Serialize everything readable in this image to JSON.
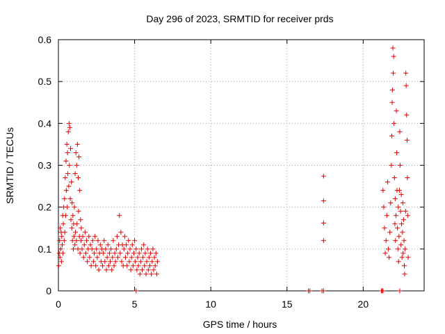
{
  "chart_data": {
    "type": "scatter",
    "title": "Day 296 of 2023, SRMTID for receiver prds",
    "xlabel": "GPS time / hours",
    "ylabel": "SRMTID / TECUs",
    "xlim": [
      0,
      24
    ],
    "ylim": [
      0,
      0.6
    ],
    "xticks": [
      "0",
      "5",
      "10",
      "15",
      "20"
    ],
    "yticks": [
      "0",
      "0.1",
      "0.2",
      "0.3",
      "0.4",
      "0.5",
      "0.6"
    ],
    "grid": true,
    "marker": "+",
    "color": "#e00000",
    "series": [
      {
        "name": "prds",
        "points": [
          [
            0.02,
            0.06
          ],
          [
            0.05,
            0.09
          ],
          [
            0.08,
            0.12
          ],
          [
            0.1,
            0.08
          ],
          [
            0.12,
            0.15
          ],
          [
            0.15,
            0.1
          ],
          [
            0.18,
            0.14
          ],
          [
            0.2,
            0.07
          ],
          [
            0.22,
            0.13
          ],
          [
            0.25,
            0.11
          ],
          [
            0.28,
            0.18
          ],
          [
            0.3,
            0.09
          ],
          [
            0.32,
            0.16
          ],
          [
            0.35,
            0.2
          ],
          [
            0.38,
            0.12
          ],
          [
            0.4,
            0.22
          ],
          [
            0.42,
            0.14
          ],
          [
            0.45,
            0.27
          ],
          [
            0.48,
            0.18
          ],
          [
            0.5,
            0.31
          ],
          [
            0.52,
            0.24
          ],
          [
            0.55,
            0.35
          ],
          [
            0.58,
            0.2
          ],
          [
            0.6,
            0.33
          ],
          [
            0.62,
            0.28
          ],
          [
            0.65,
            0.38
          ],
          [
            0.68,
            0.25
          ],
          [
            0.7,
            0.4
          ],
          [
            0.72,
            0.3
          ],
          [
            0.75,
            0.39
          ],
          [
            0.78,
            0.22
          ],
          [
            0.8,
            0.34
          ],
          [
            0.82,
            0.17
          ],
          [
            0.85,
            0.26
          ],
          [
            0.88,
            0.15
          ],
          [
            0.9,
            0.21
          ],
          [
            0.92,
            0.12
          ],
          [
            0.95,
            0.18
          ],
          [
            0.98,
            0.1
          ],
          [
            1.0,
            0.16
          ],
          [
            1.02,
            0.13
          ],
          [
            1.05,
            0.2
          ],
          [
            1.08,
            0.11
          ],
          [
            1.1,
            0.28
          ],
          [
            1.12,
            0.14
          ],
          [
            1.15,
            0.33
          ],
          [
            1.18,
            0.12
          ],
          [
            1.2,
            0.3
          ],
          [
            1.22,
            0.16
          ],
          [
            1.25,
            0.35
          ],
          [
            1.28,
            0.1
          ],
          [
            1.3,
            0.27
          ],
          [
            1.32,
            0.19
          ],
          [
            1.35,
            0.32
          ],
          [
            1.38,
            0.13
          ],
          [
            1.4,
            0.24
          ],
          [
            1.42,
            0.09
          ],
          [
            1.45,
            0.17
          ],
          [
            1.48,
            0.12
          ],
          [
            1.5,
            0.15
          ],
          [
            1.55,
            0.1
          ],
          [
            1.6,
            0.13
          ],
          [
            1.65,
            0.08
          ],
          [
            1.7,
            0.11
          ],
          [
            1.75,
            0.14
          ],
          [
            1.8,
            0.09
          ],
          [
            1.85,
            0.12
          ],
          [
            1.9,
            0.07
          ],
          [
            1.95,
            0.1
          ],
          [
            2.0,
            0.13
          ],
          [
            2.05,
            0.08
          ],
          [
            2.1,
            0.11
          ],
          [
            2.15,
            0.06
          ],
          [
            2.2,
            0.1
          ],
          [
            2.25,
            0.12
          ],
          [
            2.3,
            0.07
          ],
          [
            2.35,
            0.09
          ],
          [
            2.4,
            0.13
          ],
          [
            2.45,
            0.06
          ],
          [
            2.5,
            0.1
          ],
          [
            2.55,
            0.08
          ],
          [
            2.6,
            0.12
          ],
          [
            2.65,
            0.05
          ],
          [
            2.7,
            0.09
          ],
          [
            2.75,
            0.11
          ],
          [
            2.8,
            0.07
          ],
          [
            2.85,
            0.1
          ],
          [
            2.9,
            0.06
          ],
          [
            2.95,
            0.09
          ],
          [
            3.0,
            0.12
          ],
          [
            3.05,
            0.07
          ],
          [
            3.1,
            0.1
          ],
          [
            3.15,
            0.05
          ],
          [
            3.2,
            0.08
          ],
          [
            3.25,
            0.11
          ],
          [
            3.3,
            0.06
          ],
          [
            3.35,
            0.09
          ],
          [
            3.4,
            0.07
          ],
          [
            3.45,
            0.1
          ],
          [
            3.5,
            0.05
          ],
          [
            3.55,
            0.08
          ],
          [
            3.6,
            0.12
          ],
          [
            3.65,
            0.06
          ],
          [
            3.7,
            0.09
          ],
          [
            3.75,
            0.07
          ],
          [
            3.8,
            0.1
          ],
          [
            3.85,
            0.13
          ],
          [
            3.9,
            0.08
          ],
          [
            3.95,
            0.11
          ],
          [
            4.0,
            0.18
          ],
          [
            4.05,
            0.09
          ],
          [
            4.1,
            0.14
          ],
          [
            4.15,
            0.07
          ],
          [
            4.2,
            0.11
          ],
          [
            4.25,
            0.06
          ],
          [
            4.3,
            0.1
          ],
          [
            4.35,
            0.13
          ],
          [
            4.4,
            0.08
          ],
          [
            4.45,
            0.11
          ],
          [
            4.5,
            0.06
          ],
          [
            4.55,
            0.09
          ],
          [
            4.6,
            0.12
          ],
          [
            4.65,
            0.07
          ],
          [
            4.7,
            0.1
          ],
          [
            4.75,
            0.05
          ],
          [
            4.8,
            0.08
          ],
          [
            4.85,
            0.11
          ],
          [
            4.9,
            0.06
          ],
          [
            4.95,
            0.09
          ],
          [
            5.0,
            0.12
          ],
          [
            5.05,
            0.07
          ],
          [
            5.1,
            0.1
          ],
          [
            5.15,
            0.05
          ],
          [
            5.2,
            0.08
          ],
          [
            5.25,
            0.06
          ],
          [
            5.3,
            0.09
          ],
          [
            5.35,
            0.04
          ],
          [
            5.4,
            0.07
          ],
          [
            5.45,
            0.1
          ],
          [
            5.5,
            0.05
          ],
          [
            5.55,
            0.08
          ],
          [
            5.6,
            0.11
          ],
          [
            5.65,
            0.06
          ],
          [
            5.7,
            0.09
          ],
          [
            5.75,
            0.04
          ],
          [
            5.8,
            0.07
          ],
          [
            5.85,
            0.1
          ],
          [
            5.9,
            0.05
          ],
          [
            5.95,
            0.08
          ],
          [
            6.0,
            0.06
          ],
          [
            6.05,
            0.09
          ],
          [
            6.1,
            0.04
          ],
          [
            6.15,
            0.07
          ],
          [
            6.2,
            0.1
          ],
          [
            6.25,
            0.05
          ],
          [
            6.3,
            0.08
          ],
          [
            6.35,
            0.06
          ],
          [
            6.4,
            0.09
          ],
          [
            6.45,
            0.04
          ],
          [
            6.5,
            0.07
          ],
          [
            17.4,
            0.274
          ],
          [
            17.4,
            0.215
          ],
          [
            17.4,
            0.162
          ],
          [
            17.4,
            0.12
          ],
          [
            16.4,
            0.0
          ],
          [
            16.5,
            0.0
          ],
          [
            17.3,
            0.0
          ],
          [
            17.4,
            0.0
          ],
          [
            5.1,
            0.0
          ],
          [
            21.2,
            0.0
          ],
          [
            21.25,
            0.0
          ],
          [
            21.3,
            0.0
          ],
          [
            22.4,
            0.0
          ],
          [
            21.3,
            0.24
          ],
          [
            21.35,
            0.2
          ],
          [
            21.4,
            0.15
          ],
          [
            21.45,
            0.09
          ],
          [
            21.5,
            0.12
          ],
          [
            21.55,
            0.18
          ],
          [
            21.6,
            0.26
          ],
          [
            21.65,
            0.1
          ],
          [
            21.7,
            0.08
          ],
          [
            21.75,
            0.14
          ],
          [
            21.8,
            0.21
          ],
          [
            21.85,
            0.3
          ],
          [
            21.88,
            0.37
          ],
          [
            21.9,
            0.45
          ],
          [
            21.92,
            0.48
          ],
          [
            21.95,
            0.58
          ],
          [
            21.97,
            0.52
          ],
          [
            22.0,
            0.56
          ],
          [
            22.02,
            0.4
          ],
          [
            22.05,
            0.27
          ],
          [
            22.08,
            0.16
          ],
          [
            22.1,
            0.22
          ],
          [
            22.12,
            0.12
          ],
          [
            22.15,
            0.18
          ],
          [
            22.18,
            0.43
          ],
          [
            22.2,
            0.33
          ],
          [
            22.22,
            0.24
          ],
          [
            22.25,
            0.15
          ],
          [
            22.28,
            0.1
          ],
          [
            22.3,
            0.2
          ],
          [
            22.32,
            0.07
          ],
          [
            22.35,
            0.13
          ],
          [
            22.38,
            0.24
          ],
          [
            22.4,
            0.38
          ],
          [
            22.42,
            0.3
          ],
          [
            22.45,
            0.19
          ],
          [
            22.48,
            0.11
          ],
          [
            22.5,
            0.23
          ],
          [
            22.52,
            0.16
          ],
          [
            22.55,
            0.08
          ],
          [
            22.58,
            0.14
          ],
          [
            22.6,
            0.21
          ],
          [
            22.62,
            0.09
          ],
          [
            22.65,
            0.17
          ],
          [
            22.68,
            0.12
          ],
          [
            22.7,
            0.06
          ],
          [
            22.72,
            0.04
          ],
          [
            22.75,
            0.1
          ],
          [
            22.78,
            0.19
          ],
          [
            22.8,
            0.52
          ],
          [
            22.82,
            0.49
          ],
          [
            22.85,
            0.42
          ],
          [
            22.88,
            0.36
          ],
          [
            22.9,
            0.27
          ],
          [
            22.92,
            0.18
          ],
          [
            22.95,
            0.08
          ]
        ]
      }
    ]
  }
}
